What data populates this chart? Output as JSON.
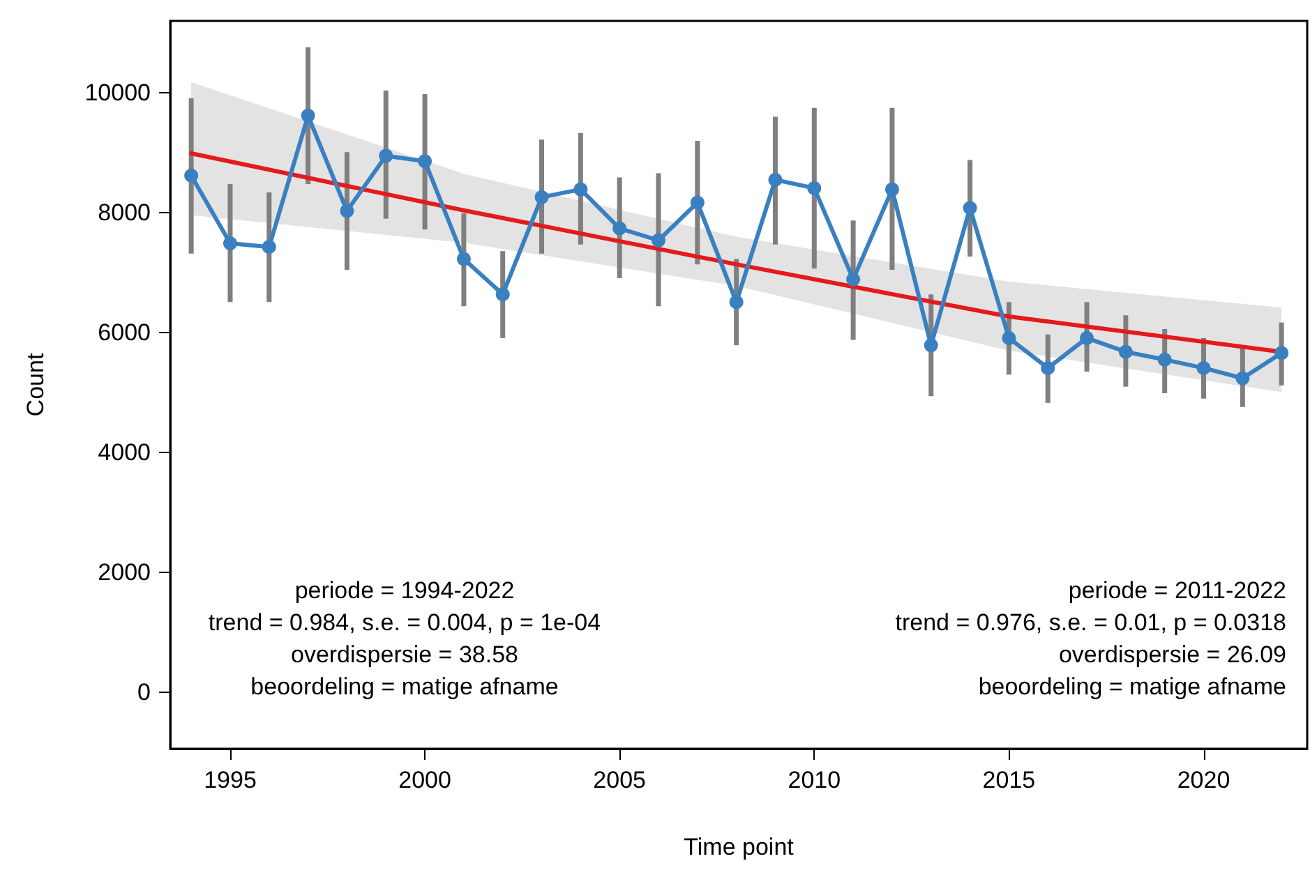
{
  "chart_data": {
    "type": "line",
    "xlabel": "Time point",
    "ylabel": "Count",
    "x": [
      1994,
      1995,
      1996,
      1997,
      1998,
      1999,
      2000,
      2001,
      2002,
      2003,
      2004,
      2005,
      2006,
      2007,
      2008,
      2009,
      2010,
      2011,
      2012,
      2013,
      2014,
      2015,
      2016,
      2017,
      2018,
      2019,
      2020,
      2021,
      2022
    ],
    "series": [
      {
        "color": "#3a80c0",
        "marker": "circle",
        "line_style": "solid",
        "values": [
          8620,
          7490,
          7430,
          9620,
          8030,
          8950,
          8860,
          7230,
          6640,
          8260,
          8390,
          7740,
          7540,
          8170,
          6510,
          8550,
          8410,
          6890,
          8390,
          5790,
          8080,
          5910,
          5410,
          5910,
          5680,
          5550,
          5410,
          5240,
          5660
        ],
        "errors": [
          [
            7320,
            9910
          ],
          [
            6510,
            8480
          ],
          [
            6510,
            8340
          ],
          [
            8480,
            10760
          ],
          [
            7050,
            9010
          ],
          [
            7900,
            10040
          ],
          [
            7720,
            9980
          ],
          [
            6440,
            7990
          ],
          [
            5910,
            7360
          ],
          [
            7320,
            9220
          ],
          [
            7470,
            9330
          ],
          [
            6910,
            8590
          ],
          [
            6440,
            8660
          ],
          [
            7140,
            9200
          ],
          [
            5790,
            7230
          ],
          [
            7470,
            9600
          ],
          [
            7070,
            9750
          ],
          [
            5880,
            7870
          ],
          [
            7050,
            9750
          ],
          [
            4940,
            6640
          ],
          [
            7270,
            8880
          ],
          [
            5300,
            6510
          ],
          [
            4830,
            5970
          ],
          [
            5350,
            6510
          ],
          [
            5100,
            6290
          ],
          [
            4990,
            6060
          ],
          [
            4900,
            5910
          ],
          [
            4760,
            5750
          ],
          [
            5120,
            6170
          ]
        ]
      },
      {
        "color": "#e41a1c",
        "marker": "none",
        "line_style": "solid",
        "x": [
          1994,
          2001,
          2008,
          2015,
          2022
        ],
        "values": [
          8990,
          8040,
          7140,
          6270,
          5680
        ],
        "lower": [
          7960,
          7500,
          6780,
          5700,
          5010
        ],
        "upper": [
          10180,
          8650,
          7600,
          6850,
          6420
        ]
      }
    ],
    "xlim": [
      1993.46,
      2022.66
    ],
    "xticks": [
      1995,
      2000,
      2005,
      2010,
      2015,
      2020
    ],
    "ylim": [
      -940,
      11200
    ],
    "yticks": [
      0,
      2000,
      4000,
      6000,
      8000,
      10000
    ],
    "grid": false,
    "annotations": [
      "periode = 1994-2022\ntrend = 0.984, s.e. = 0.004, p = 1e-04\noverdispersie = 38.58\nbeoordeling = matige afname",
      "periode = 2011-2022\ntrend = 0.976, s.e. = 0.01, p = 0.0318\noverdispersie = 26.09\nbeoordeling = matige afname"
    ]
  }
}
